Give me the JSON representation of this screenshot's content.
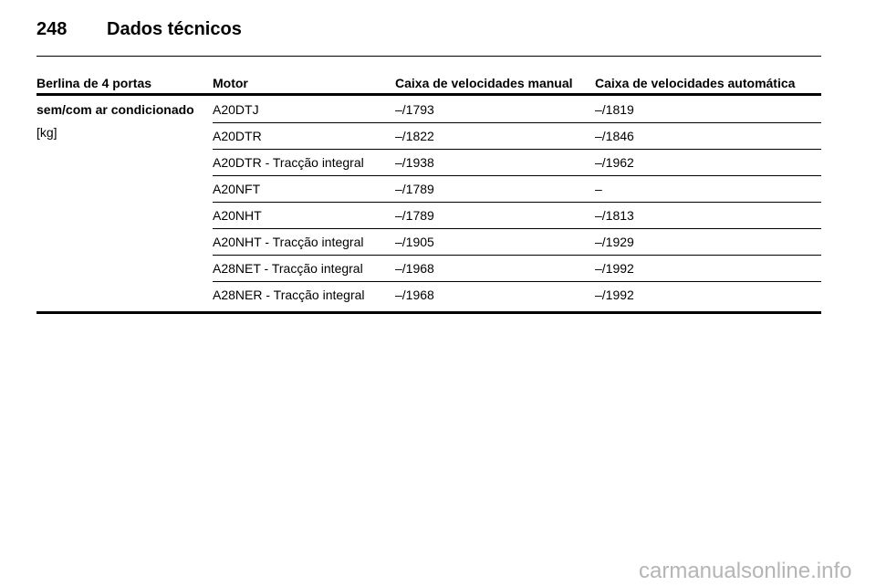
{
  "header": {
    "page_number": "248",
    "title": "Dados técnicos"
  },
  "table": {
    "columns": [
      "Berlina de 4 portas",
      "Motor",
      "Caixa de velocidades manual",
      "Caixa de velocidades automática"
    ],
    "row_label": "sem/com ar condicionado",
    "row_unit": "[kg]",
    "rows": [
      [
        "A20DTJ",
        "–/1793",
        "–/1819"
      ],
      [
        "A20DTR",
        "–/1822",
        "–/1846"
      ],
      [
        "A20DTR - Tracção integral",
        "–/1938",
        "–/1962"
      ],
      [
        "A20NFT",
        "–/1789",
        "–"
      ],
      [
        "A20NHT",
        "–/1789",
        "–/1813"
      ],
      [
        "A20NHT - Tracção integral",
        "–/1905",
        "–/1929"
      ],
      [
        "A28NET - Tracção integral",
        "–/1968",
        "–/1992"
      ],
      [
        "A28NER - Tracção integral",
        "–/1968",
        "–/1992"
      ]
    ]
  },
  "footer": {
    "watermark": "carmanualsonline.info"
  }
}
